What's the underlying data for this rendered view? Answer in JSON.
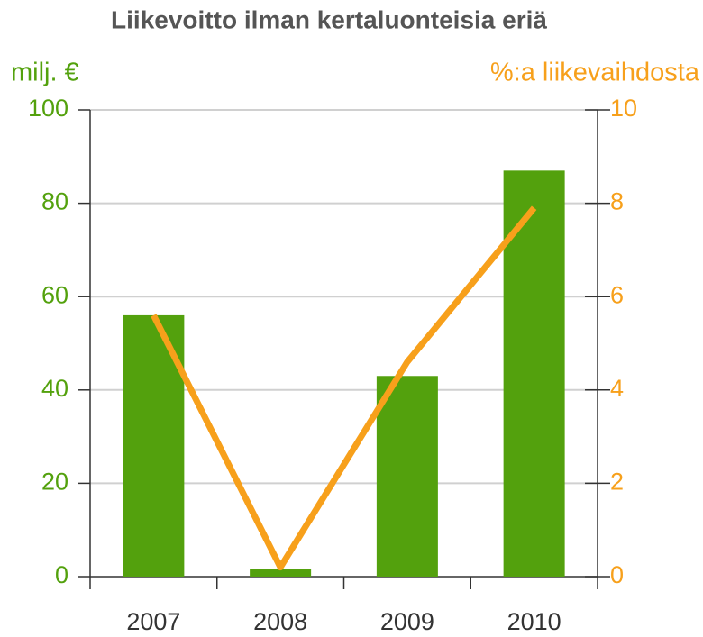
{
  "chart_data": {
    "type": "bar",
    "title": "Liikevoitto ilman kertaluonteisia eriä",
    "ylabel": "milj. €",
    "y2label": "%:a liikevaihdosta",
    "categories": [
      "2007",
      "2008",
      "2009",
      "2010"
    ],
    "series": [
      {
        "type": "bar",
        "color": "#53a10d",
        "values": [
          56,
          1.7,
          43,
          87
        ]
      },
      {
        "type": "line",
        "axis": "y2",
        "color": "#f7a01b",
        "values": [
          5.6,
          0.2,
          4.6,
          7.9
        ]
      }
    ],
    "ylim": [
      0,
      100
    ],
    "yticks": [
      0,
      20,
      40,
      60,
      80,
      100
    ],
    "y2lim": [
      0,
      10
    ],
    "y2ticks": [
      0,
      2,
      4,
      6,
      8,
      10
    ],
    "grid": true,
    "ycolor": "#53a10d",
    "y2color": "#f7a01b"
  }
}
